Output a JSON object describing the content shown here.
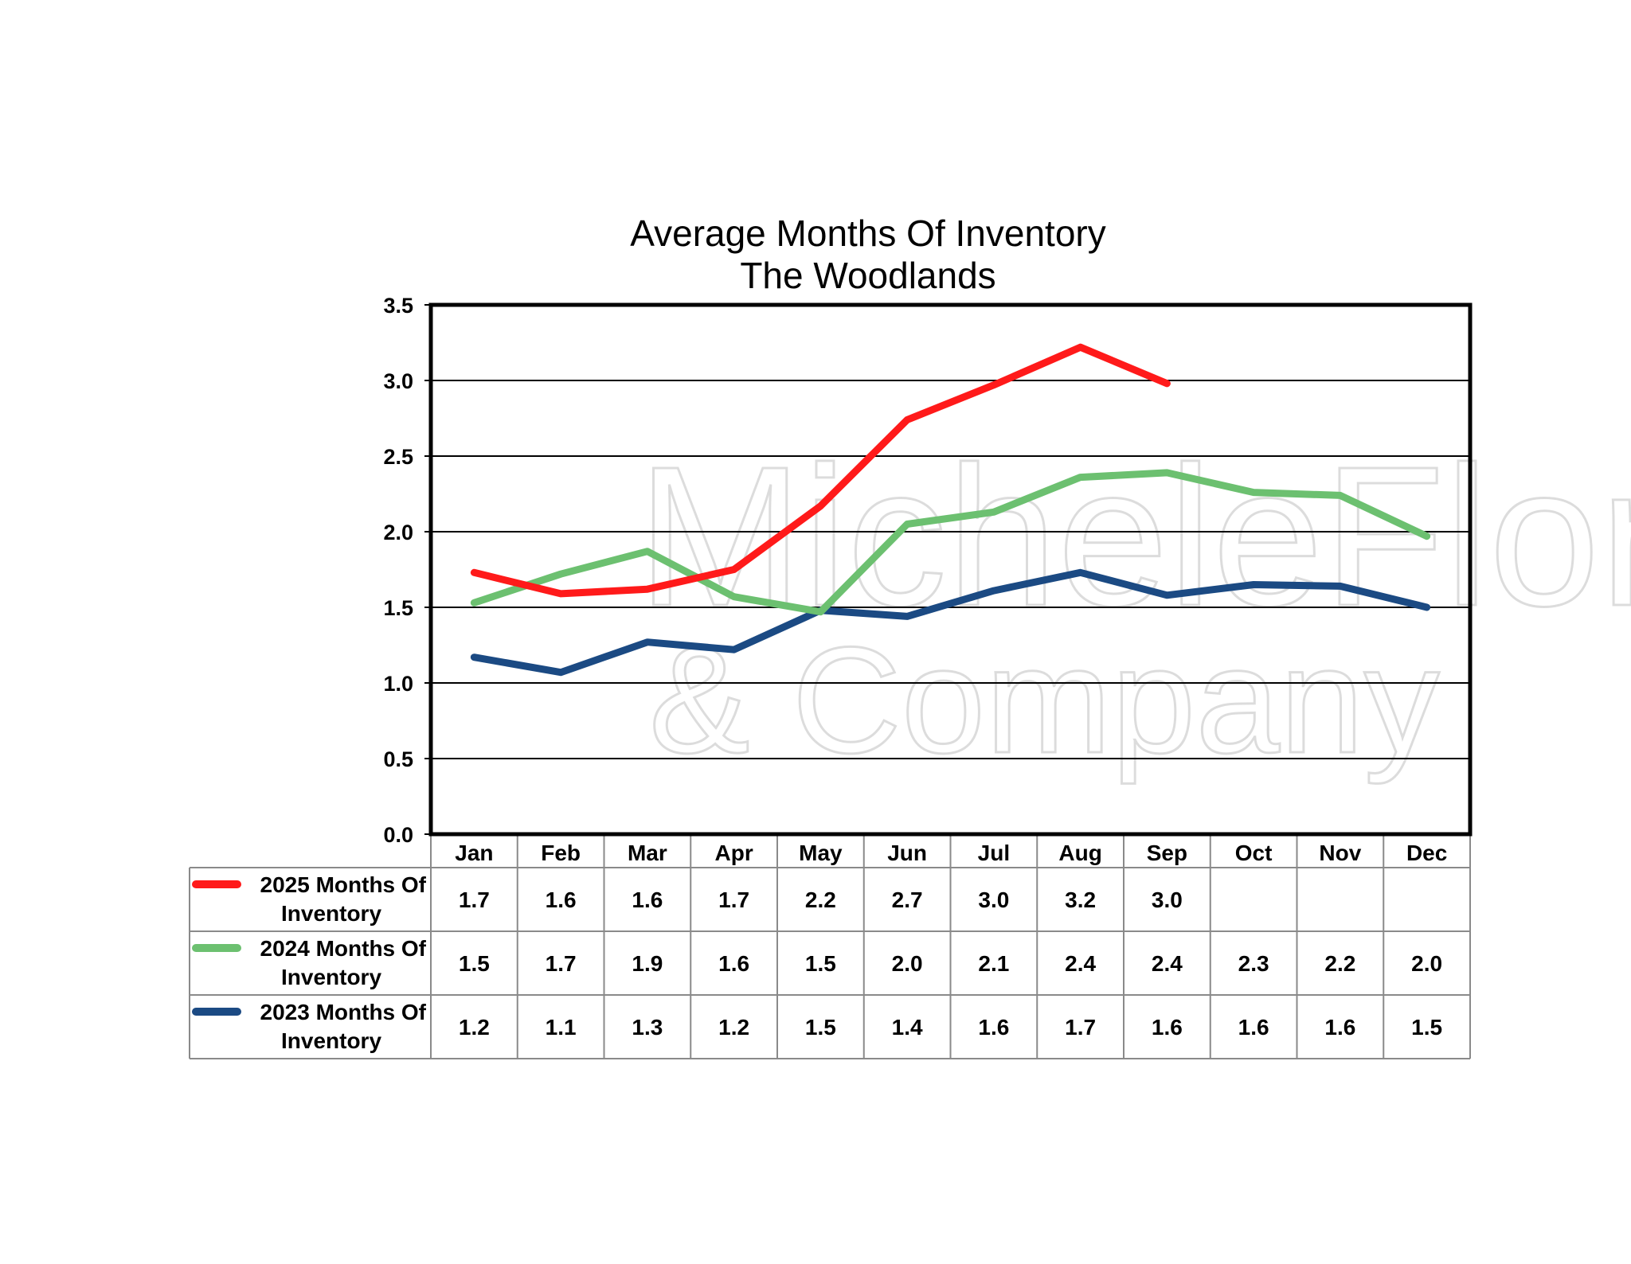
{
  "chart_data": {
    "type": "line",
    "title": "Average Months Of Inventory",
    "subtitle": "The Woodlands",
    "categories": [
      "Jan",
      "Feb",
      "Mar",
      "Apr",
      "May",
      "Jun",
      "Jul",
      "Aug",
      "Sep",
      "Oct",
      "Nov",
      "Dec"
    ],
    "ylim": [
      0,
      3.5
    ],
    "yticks": [
      "0.0",
      "0.5",
      "1.0",
      "1.5",
      "2.0",
      "2.5",
      "3.0",
      "3.5"
    ],
    "ytick_values": [
      0,
      0.5,
      1.0,
      1.5,
      2.0,
      2.5,
      3.0,
      3.5
    ],
    "grid": true,
    "legend": "data-table-left",
    "series": [
      {
        "name": "2025 Months Of Inventory",
        "name_line1": "2025 Months Of",
        "name_line2": "Inventory",
        "color": "#ff1a1a",
        "values": [
          1.73,
          1.59,
          1.62,
          1.75,
          2.17,
          2.74,
          2.97,
          3.22,
          2.98,
          null,
          null,
          null
        ],
        "labels": [
          "1.7",
          "1.6",
          "1.6",
          "1.7",
          "2.2",
          "2.7",
          "3.0",
          "3.2",
          "3.0",
          "",
          "",
          ""
        ]
      },
      {
        "name": "2024 Months Of Inventory",
        "name_line1": "2024 Months Of",
        "name_line2": "Inventory",
        "color": "#6cc070",
        "values": [
          1.53,
          1.72,
          1.87,
          1.57,
          1.47,
          2.05,
          2.13,
          2.36,
          2.39,
          2.26,
          2.24,
          1.97
        ],
        "labels": [
          "1.5",
          "1.7",
          "1.9",
          "1.6",
          "1.5",
          "2.0",
          "2.1",
          "2.4",
          "2.4",
          "2.3",
          "2.2",
          "2.0"
        ]
      },
      {
        "name": "2023 Months Of Inventory",
        "name_line1": "2023 Months Of",
        "name_line2": "Inventory",
        "color": "#1b4a83",
        "values": [
          1.17,
          1.07,
          1.27,
          1.22,
          1.48,
          1.44,
          1.61,
          1.73,
          1.58,
          1.65,
          1.64,
          1.5
        ],
        "labels": [
          "1.2",
          "1.1",
          "1.3",
          "1.2",
          "1.5",
          "1.4",
          "1.6",
          "1.7",
          "1.6",
          "1.6",
          "1.6",
          "1.5"
        ]
      }
    ]
  },
  "watermark": {
    "line1": "MicheleFlory",
    "line2": "& Company"
  }
}
